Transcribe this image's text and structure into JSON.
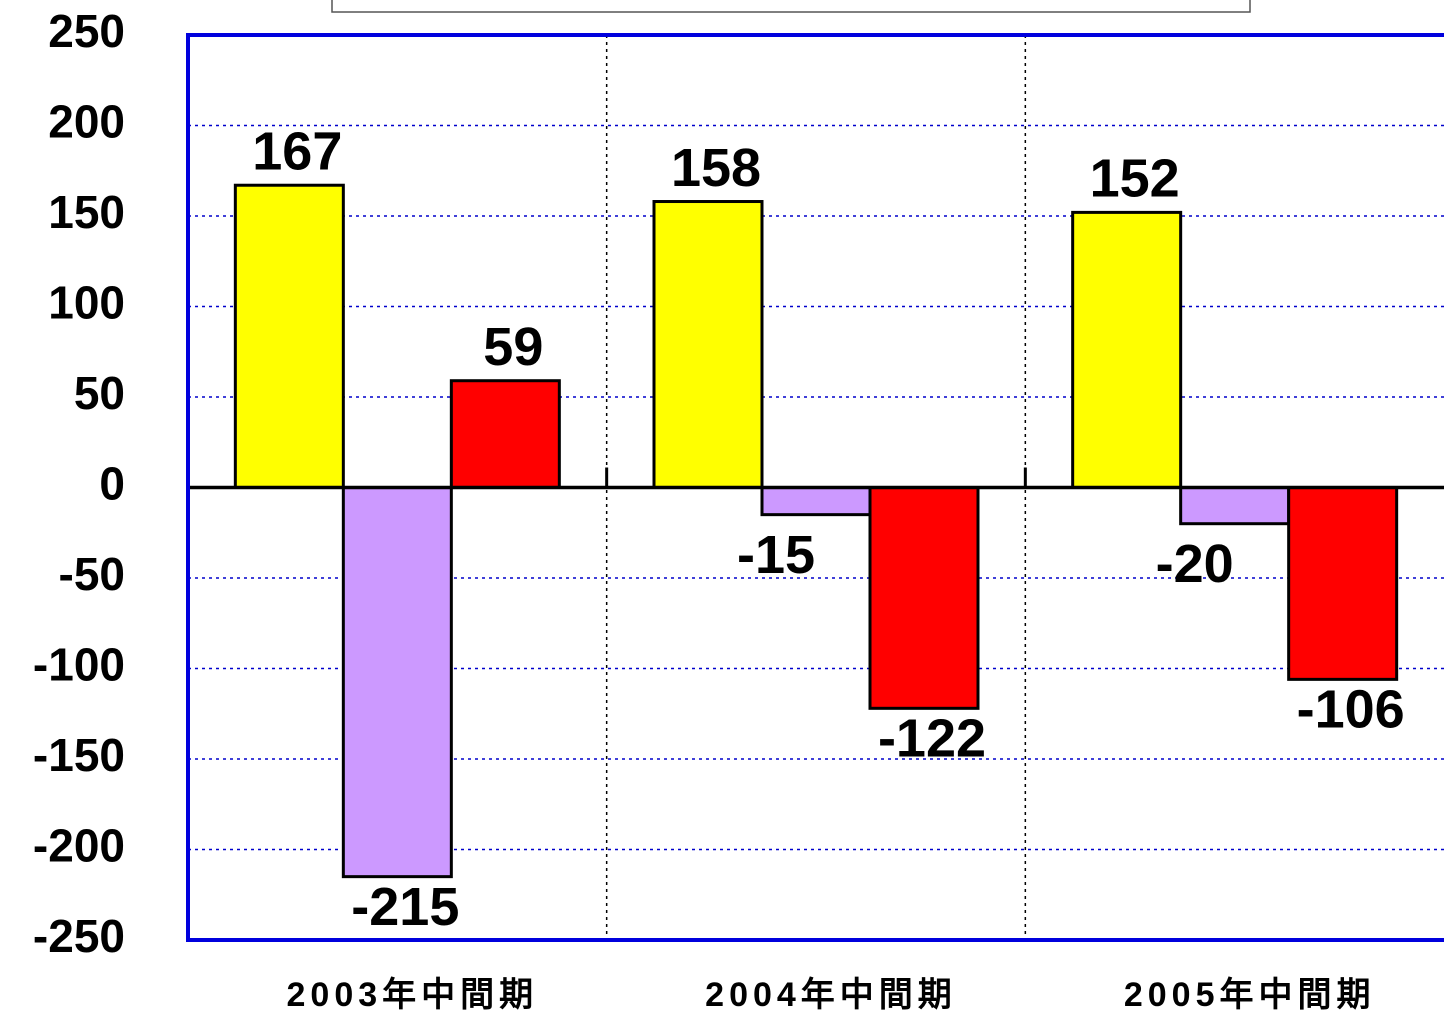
{
  "chart_data": {
    "type": "bar",
    "categories": [
      "2003年中間期",
      "2004年中間期",
      "2005年中間期"
    ],
    "series": [
      {
        "color": "#ffff00",
        "values": [
          167,
          158,
          152
        ]
      },
      {
        "color": "#cc99ff",
        "values": [
          -215,
          -15,
          -20
        ]
      },
      {
        "color": "#ff0000",
        "values": [
          59,
          -122,
          -106
        ]
      }
    ],
    "ylim": [
      -250,
      250
    ],
    "yticks": [
      -250,
      -200,
      -150,
      -100,
      -50,
      0,
      50,
      100,
      150,
      200,
      250
    ],
    "grid": true
  }
}
